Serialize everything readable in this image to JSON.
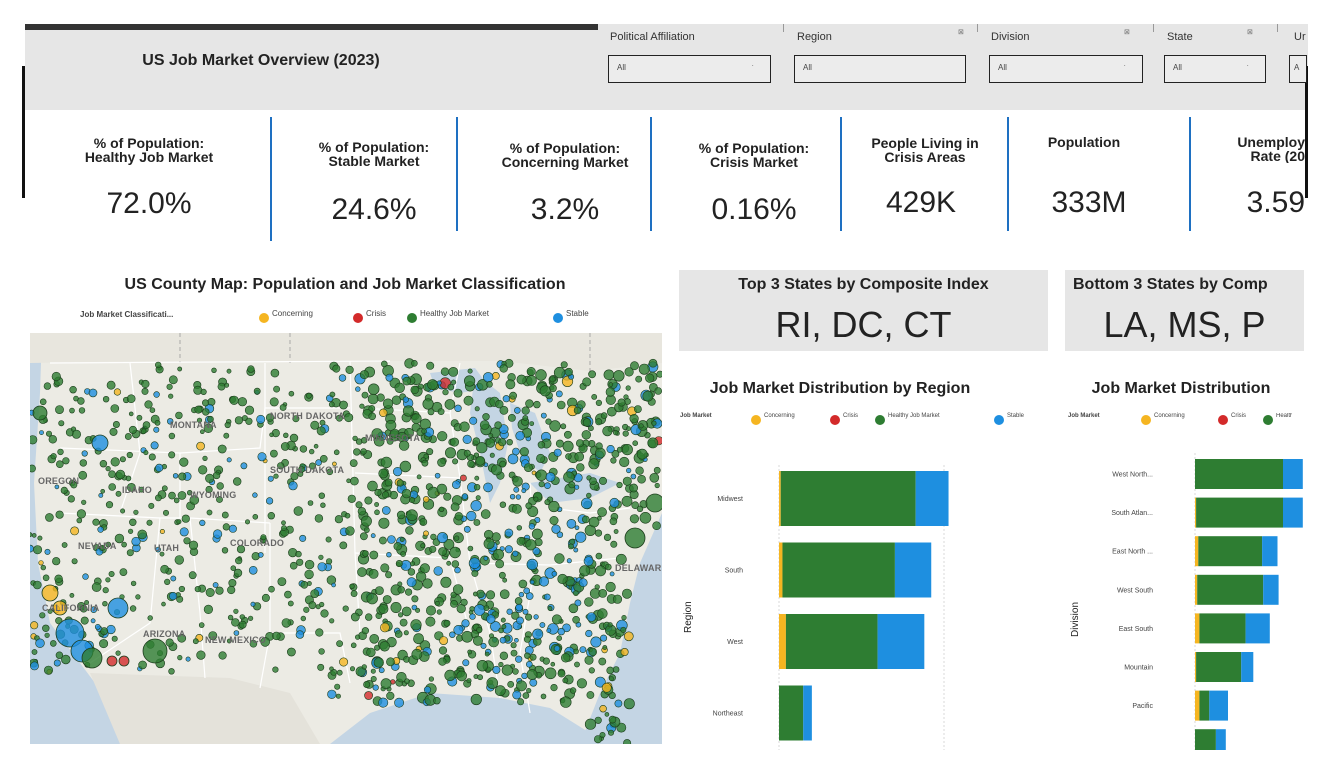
{
  "header": {
    "title": "US Job Market Overview (2023)"
  },
  "filters": [
    {
      "label": "Political Affiliation",
      "value": "All"
    },
    {
      "label": "Region",
      "value": "All"
    },
    {
      "label": "Division",
      "value": "All"
    },
    {
      "label": "State",
      "value": "All"
    },
    {
      "label": "Ur",
      "value": "A"
    }
  ],
  "kpis": [
    {
      "label": "% of Population:\nHealthy Job Market",
      "value": "72.0%"
    },
    {
      "label": "% of Population:\nStable Market",
      "value": "24.6%"
    },
    {
      "label": "% of Population:\nConcerning Market",
      "value": "3.2%"
    },
    {
      "label": "% of Population:\nCrisis Market",
      "value": "0.16%"
    },
    {
      "label": "People Living in\nCrisis Areas",
      "value": "429K"
    },
    {
      "label": "Population",
      "value": "333M"
    },
    {
      "label": "Unemploy\nRate (20",
      "value": "3.59"
    }
  ],
  "legend": {
    "items": [
      {
        "name": "Concerning",
        "color": "#f5b521"
      },
      {
        "name": "Crisis",
        "color": "#d32a2a"
      },
      {
        "name": "Healthy Job Market",
        "color": "#2e7d32"
      },
      {
        "name": "Stable",
        "color": "#1e8fe0"
      }
    ]
  },
  "map": {
    "title": "US County Map: Population and Job Market Classification",
    "legend_title": "Job Market Classificati...",
    "state_labels": [
      "MONTANA",
      "NORTH DAKOTA",
      "MINNESOTA",
      "OREGON",
      "IDAHO",
      "SOUTH DAKOTA",
      "WYOMING",
      "NEVADA",
      "UTAH",
      "COLORADO",
      "CALIFORNIA",
      "ARIZONA",
      "NEW MEXICO",
      "DELAWARE"
    ]
  },
  "top_states": {
    "title": "Top 3 States by Composite Index",
    "value": "RI, DC, CT"
  },
  "bottom_states": {
    "title": "Bottom 3 States by Comp",
    "value": "LA, MS, P"
  },
  "chart_data": [
    {
      "type": "bar",
      "orientation": "horizontal",
      "stacked": true,
      "title": "Job Market Distribution by Region",
      "legend_title": "Job Market",
      "ylabel": "Region",
      "xlim": [
        0,
        100
      ],
      "categories": [
        "Midwest",
        "South",
        "West",
        "Northeast"
      ],
      "series": [
        {
          "name": "Concerning",
          "color": "#f5b521",
          "values": [
            1,
            2,
            4,
            0
          ]
        },
        {
          "name": "Crisis",
          "color": "#d32a2a",
          "values": [
            0,
            0,
            0,
            0
          ]
        },
        {
          "name": "Healthy Job Market",
          "color": "#2e7d32",
          "values": [
            78,
            65,
            53,
            14
          ]
        },
        {
          "name": "Stable",
          "color": "#1e8fe0",
          "values": [
            19,
            21,
            27,
            5
          ]
        }
      ]
    },
    {
      "type": "bar",
      "orientation": "horizontal",
      "stacked": true,
      "title": "Job Market Distribution",
      "legend_title": "Job Market",
      "ylabel": "Division",
      "categories": [
        "West North...",
        "South Atlan...",
        "East North ...",
        "West South",
        "East South",
        "Mountain",
        "Pacific",
        ""
      ],
      "series": [
        {
          "name": "Concerning",
          "color": "#f5b521",
          "values": [
            0,
            1,
            3,
            2,
            4,
            1,
            4,
            0
          ]
        },
        {
          "name": "Crisis",
          "color": "#d32a2a",
          "values": [
            0,
            0,
            0,
            0,
            0,
            0,
            0,
            0
          ]
        },
        {
          "name": "Healthy Job Market",
          "color": "#2e7d32",
          "values": [
            80,
            79,
            58,
            60,
            42,
            41,
            9,
            19
          ]
        },
        {
          "name": "Stable",
          "color": "#1e8fe0",
          "values": [
            18,
            18,
            14,
            14,
            22,
            11,
            17,
            9
          ]
        }
      ]
    }
  ]
}
